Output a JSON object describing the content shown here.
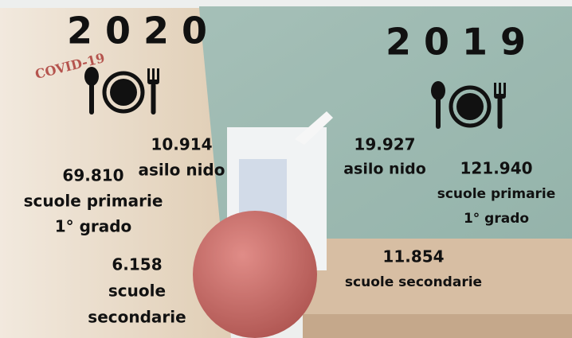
{
  "stamp": "COVID-19",
  "years": [
    {
      "year": "2 0 2 0",
      "items": [
        {
          "value": "10.914",
          "label": [
            "asilo nido"
          ]
        },
        {
          "value": "69.810",
          "label": [
            "scuole primarie",
            "1° grado"
          ]
        },
        {
          "value": "6.158",
          "label": [
            "scuole",
            "secondarie"
          ]
        }
      ]
    },
    {
      "year": "2 0 1 9",
      "items": [
        {
          "value": "19.927",
          "label": [
            "asilo nido"
          ]
        },
        {
          "value": "121.940",
          "label": [
            "scuole primarie",
            "1° grado"
          ]
        },
        {
          "value": "11.854",
          "label": [
            "scuole secondarie"
          ]
        }
      ]
    }
  ]
}
